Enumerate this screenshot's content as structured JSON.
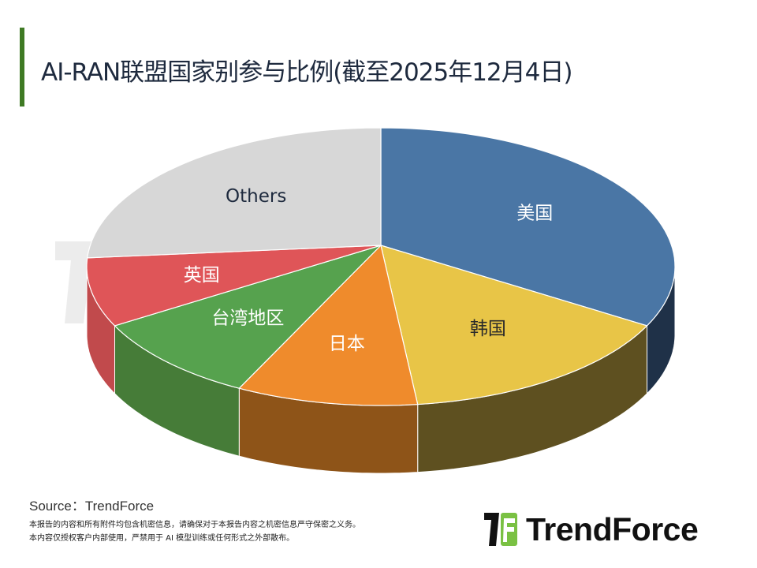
{
  "title": "AI-RAN联盟国家别参与比例(截至2025年12月4日)",
  "footer": {
    "source": "Source：TrendForce",
    "disclaimer_1": "本报告的内容和所有附件均包含机密信息，请确保对于本报告内容之机密信息严守保密之义务。",
    "disclaimer_2": "本内容仅授权客户内部使用，严禁用于 AI 模型训练或任何形式之外部散布。"
  },
  "logo": {
    "text": "TrendForce",
    "accent": "#7ac143"
  },
  "watermark": {
    "text": "TrendForce"
  },
  "chart_data": {
    "type": "pie",
    "title": "AI-RAN联盟国家别参与比例(截至2025年12月4日)",
    "style": "3d-pie, labels inside slices, no legend, no values shown",
    "categories": [
      "美国",
      "韩国",
      "日本",
      "台湾地区",
      "英国",
      "Others"
    ],
    "values": [
      32,
      16,
      10,
      10,
      8,
      24
    ],
    "unit": "% (estimated from slice angles)",
    "colors": [
      "#4a76a5",
      "#e8c547",
      "#ef8b2c",
      "#56a24e",
      "#df5558",
      "#d7d7d7"
    ],
    "side_colors": [
      "#1f3148",
      "#5e5020",
      "#8e5418",
      "#467c38",
      "#c14a4c",
      "#bdbdbd"
    ],
    "label_colors": [
      "#ffffff",
      "#2b2b2b",
      "#ffffff",
      "#ffffff",
      "#ffffff",
      "#1e2a3e"
    ],
    "start_angle_deg": -90
  }
}
